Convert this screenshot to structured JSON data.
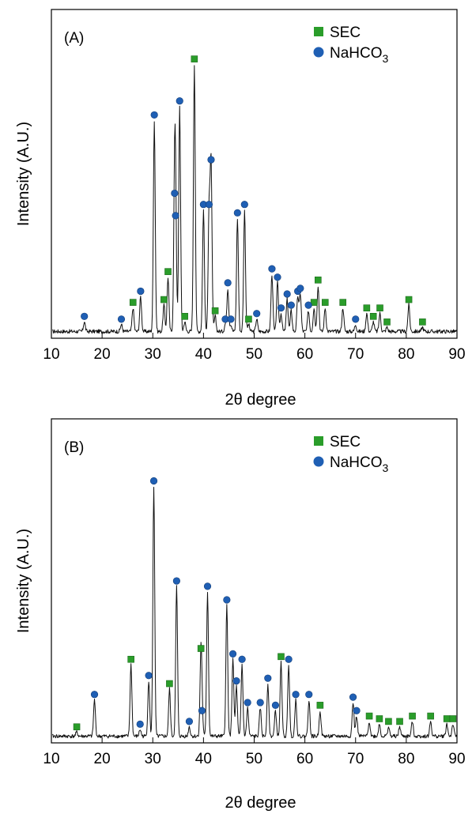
{
  "chart_data": [
    {
      "type": "line",
      "panel_label": "(A)",
      "xlabel": "2θ degree",
      "ylabel": "Intensity (A.U.)",
      "xlim": [
        10,
        90
      ],
      "xticks": [
        10,
        20,
        30,
        40,
        50,
        60,
        70,
        80,
        90
      ],
      "ylim": [
        0,
        100
      ],
      "legend": {
        "position": "top-right",
        "entries": [
          {
            "name": "SEC",
            "marker": "square",
            "color": "#2a9d2a"
          },
          {
            "name": "NaHCO3",
            "label_main": "NaHCO",
            "label_sub": "3",
            "marker": "circle",
            "color": "#1f5fb4"
          }
        ]
      },
      "series": [
        {
          "name": "SEC",
          "marker": "square",
          "x": [
            26.1,
            32.2,
            33.0,
            36.3,
            38.2,
            42.3,
            48.9,
            61.8,
            62.6,
            64.0,
            67.5,
            72.2,
            73.5,
            74.8,
            76.2,
            80.5,
            83.2
          ],
          "y": [
            10,
            11,
            21,
            5,
            97,
            7,
            4,
            10,
            18,
            10,
            10,
            8,
            5,
            8,
            3,
            11,
            3
          ]
        },
        {
          "name": "NaHCO3",
          "marker": "circle",
          "x": [
            16.5,
            23.8,
            27.6,
            30.3,
            34.3,
            34.5,
            35.3,
            40.0,
            41.1,
            41.5,
            44.3,
            44.8,
            45.4,
            46.7,
            48.1,
            50.5,
            53.5,
            54.6,
            55.3,
            56.5,
            57.3,
            58.6,
            59.1,
            60.7,
            70.0
          ],
          "y": [
            5,
            4,
            14,
            77,
            49,
            41,
            82,
            45,
            45,
            61,
            4,
            17,
            4,
            42,
            45,
            6,
            22,
            19,
            8,
            13,
            9,
            14,
            15,
            9,
            4
          ]
        }
      ]
    },
    {
      "type": "line",
      "panel_label": "(B)",
      "xlabel": "2θ degree",
      "ylabel": "Intensity (A.U.)",
      "xlim": [
        10,
        90
      ],
      "xticks": [
        10,
        20,
        30,
        40,
        50,
        60,
        70,
        80,
        90
      ],
      "ylim": [
        0,
        100
      ],
      "legend": {
        "position": "top-right",
        "entries": [
          {
            "name": "SEC",
            "marker": "square",
            "color": "#2a9d2a"
          },
          {
            "name": "NaHCO3",
            "label_main": "NaHCO",
            "label_sub": "3",
            "marker": "circle",
            "color": "#1f5fb4"
          }
        ]
      },
      "series": [
        {
          "name": "SEC",
          "marker": "square",
          "x": [
            15.0,
            25.7,
            33.3,
            39.5,
            55.3,
            63.0,
            72.7,
            74.7,
            76.5,
            78.7,
            81.2,
            84.8,
            88.0,
            89.2
          ],
          "y": [
            3,
            28,
            19,
            32,
            29,
            11,
            7,
            6,
            5,
            5,
            7,
            7,
            6,
            6
          ]
        },
        {
          "name": "NaHCO3",
          "marker": "circle",
          "x": [
            18.5,
            27.5,
            29.2,
            30.2,
            34.7,
            37.2,
            39.7,
            40.8,
            44.6,
            45.8,
            46.5,
            47.6,
            48.7,
            51.2,
            52.7,
            54.2,
            56.8,
            58.2,
            60.8,
            69.5,
            70.2
          ],
          "y": [
            15,
            4,
            22,
            94,
            57,
            5,
            9,
            55,
            50,
            30,
            20,
            28,
            12,
            12,
            21,
            11,
            28,
            15,
            15,
            14,
            9
          ]
        }
      ]
    }
  ]
}
